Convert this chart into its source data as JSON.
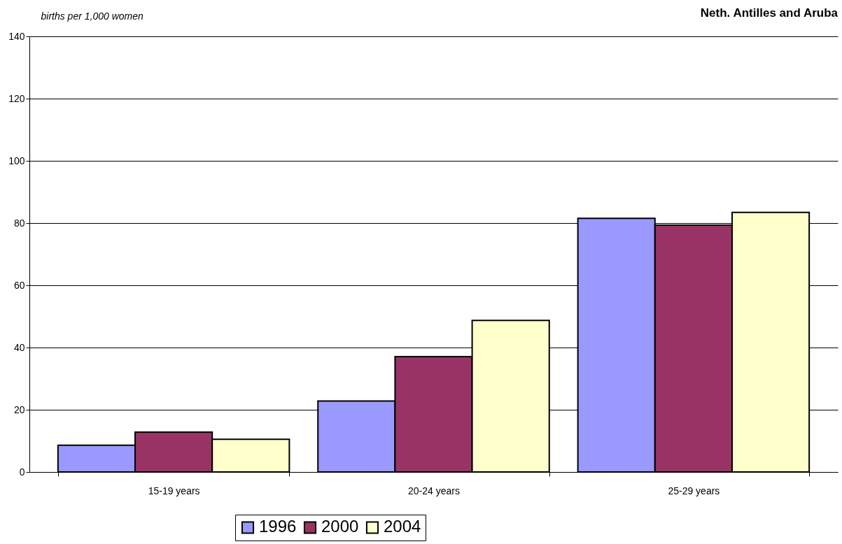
{
  "chart_data": {
    "type": "bar",
    "title": "Neth. Antilles and Aruba",
    "ylabel": "births per 1,000 women",
    "categories": [
      "15-19 years",
      "20-24 years",
      "25-29 years"
    ],
    "series": [
      {
        "name": "1996",
        "color": "#9999ff",
        "values": [
          8.6,
          22.8,
          81.5
        ]
      },
      {
        "name": "2000",
        "color": "#993366",
        "values": [
          12.8,
          37.1,
          79.3
        ]
      },
      {
        "name": "2004",
        "color": "#ffffcc",
        "values": [
          10.5,
          48.7,
          83.4
        ]
      }
    ],
    "ylim": [
      0,
      140
    ],
    "yticks": [
      0,
      20,
      40,
      60,
      80,
      100,
      120,
      140
    ],
    "grid": "y",
    "legend": "bottom"
  }
}
